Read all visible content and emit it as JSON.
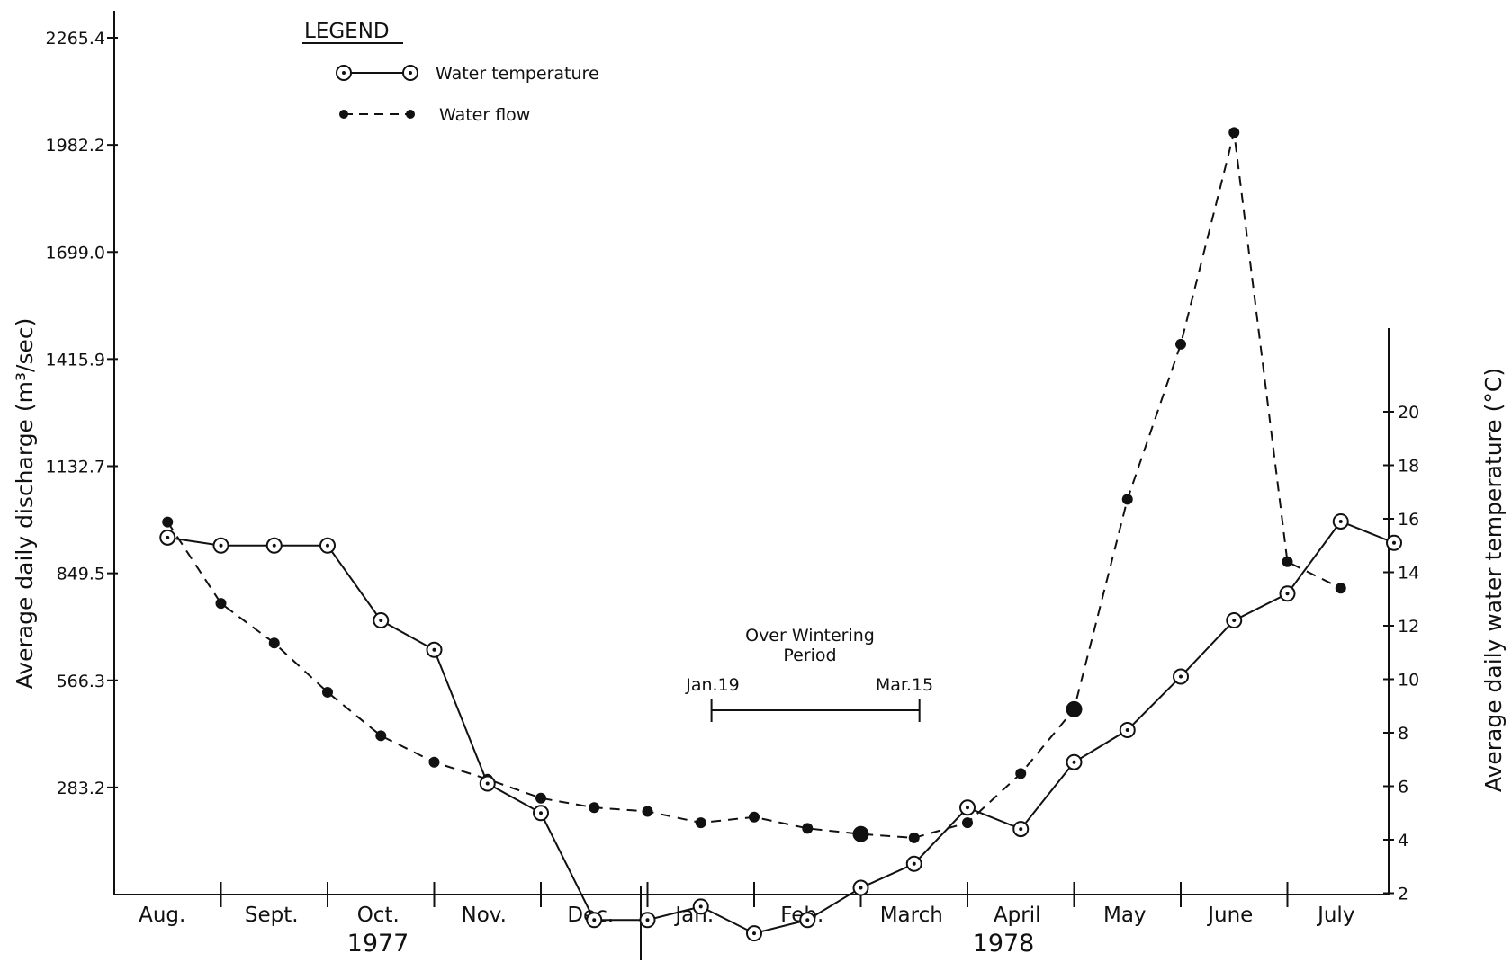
{
  "chart_data": {
    "type": "line",
    "legend": {
      "title": "LEGEND",
      "placement": "top-left",
      "entries": [
        "Water temperature",
        "Water flow"
      ]
    },
    "x": {
      "months": [
        "Aug.",
        "Sept.",
        "Oct.",
        "Nov.",
        "Dec.",
        "Jan.",
        "Feb.",
        "March",
        "April",
        "May",
        "June",
        "July"
      ],
      "years": [
        "1977",
        "1978"
      ]
    },
    "y_left": {
      "label": "Average daily discharge (m³/sec)",
      "ticks": [
        "283.2",
        "566.3",
        "849.5",
        "1132.7",
        "1415.9",
        "1699.0",
        "1982.2",
        "2265.4"
      ],
      "ylim": [
        0,
        2265.4
      ]
    },
    "y_right": {
      "label": "Average daily water temperature (°C)",
      "ticks": [
        "2",
        "4",
        "6",
        "8",
        "10",
        "12",
        "14",
        "16",
        "18",
        "20"
      ],
      "ylim": [
        0,
        21
      ]
    },
    "series": [
      {
        "name": "Water temperature",
        "axis": "right",
        "style": "solid-open-circle",
        "x": [
          0.5,
          1.0,
          1.5,
          2.0,
          2.5,
          3.0,
          3.5,
          4.0,
          4.5,
          5.0,
          5.5,
          6.0,
          6.5,
          7.0,
          7.5,
          8.0,
          8.5,
          9.0,
          9.5,
          10.0,
          10.5,
          11.0,
          11.5,
          12.0
        ],
        "values": [
          15.3,
          15.0,
          15.0,
          15.0,
          12.2,
          11.1,
          6.1,
          5.0,
          1.0,
          1.0,
          1.5,
          0.5,
          1.0,
          2.2,
          3.1,
          5.2,
          4.4,
          6.9,
          8.1,
          10.1,
          12.2,
          13.2,
          15.9,
          15.1
        ]
      },
      {
        "name": "Water flow",
        "axis": "left",
        "style": "dashed-filled-dot",
        "x": [
          0.5,
          1.0,
          1.5,
          2.0,
          2.5,
          3.0,
          3.5,
          4.0,
          4.5,
          5.0,
          5.5,
          6.0,
          6.5,
          7.0,
          7.5,
          8.0,
          8.5,
          9.0,
          9.5,
          10.0,
          10.5,
          11.0,
          11.5
        ],
        "values": [
          985,
          770,
          665,
          535,
          420,
          350,
          305,
          255,
          230,
          220,
          190,
          205,
          175,
          160,
          150,
          190,
          320,
          490,
          1045,
          1455,
          2015,
          880,
          810
        ]
      }
    ],
    "annotations": {
      "bracket_label": [
        "Over Wintering",
        "Period"
      ],
      "start_label": "Jan.19",
      "end_label": "Mar.15",
      "start_x": 5.6,
      "end_x": 7.55
    },
    "grid": false
  }
}
